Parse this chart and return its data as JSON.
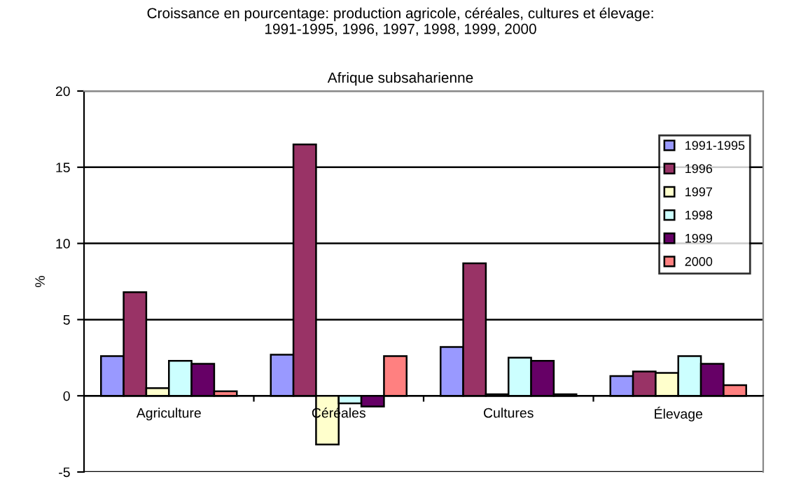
{
  "chart_data": {
    "type": "bar",
    "title": "Croissance en pourcentage: production agricole, céréales, cultures et élevage:\n1991-1995, 1996, 1997, 1998, 1999, 2000",
    "subtitle": "Afrique subsaharienne",
    "ylabel": "%",
    "categories": [
      "Agriculture",
      "Céréales",
      "Cultures",
      "Élevage"
    ],
    "series": [
      {
        "name": "1991-1995",
        "color": "#9999ff",
        "values": [
          2.6,
          2.7,
          3.2,
          1.3
        ]
      },
      {
        "name": "1996",
        "color": "#993366",
        "values": [
          6.8,
          16.5,
          8.7,
          1.6
        ]
      },
      {
        "name": "1997",
        "color": "#ffffcc",
        "values": [
          0.5,
          -3.2,
          0.1,
          1.5
        ]
      },
      {
        "name": "1998",
        "color": "#ccffff",
        "values": [
          2.3,
          -0.5,
          2.5,
          2.6
        ]
      },
      {
        "name": "1999",
        "color": "#660066",
        "values": [
          2.1,
          -0.7,
          2.3,
          2.1
        ]
      },
      {
        "name": "2000",
        "color": "#ff8080",
        "values": [
          0.3,
          2.6,
          0.1,
          0.7
        ]
      }
    ],
    "ylim": [
      -5,
      20
    ],
    "yticks": [
      -5,
      0,
      5,
      10,
      15,
      20
    ],
    "grid": "y",
    "legend": "top right"
  }
}
